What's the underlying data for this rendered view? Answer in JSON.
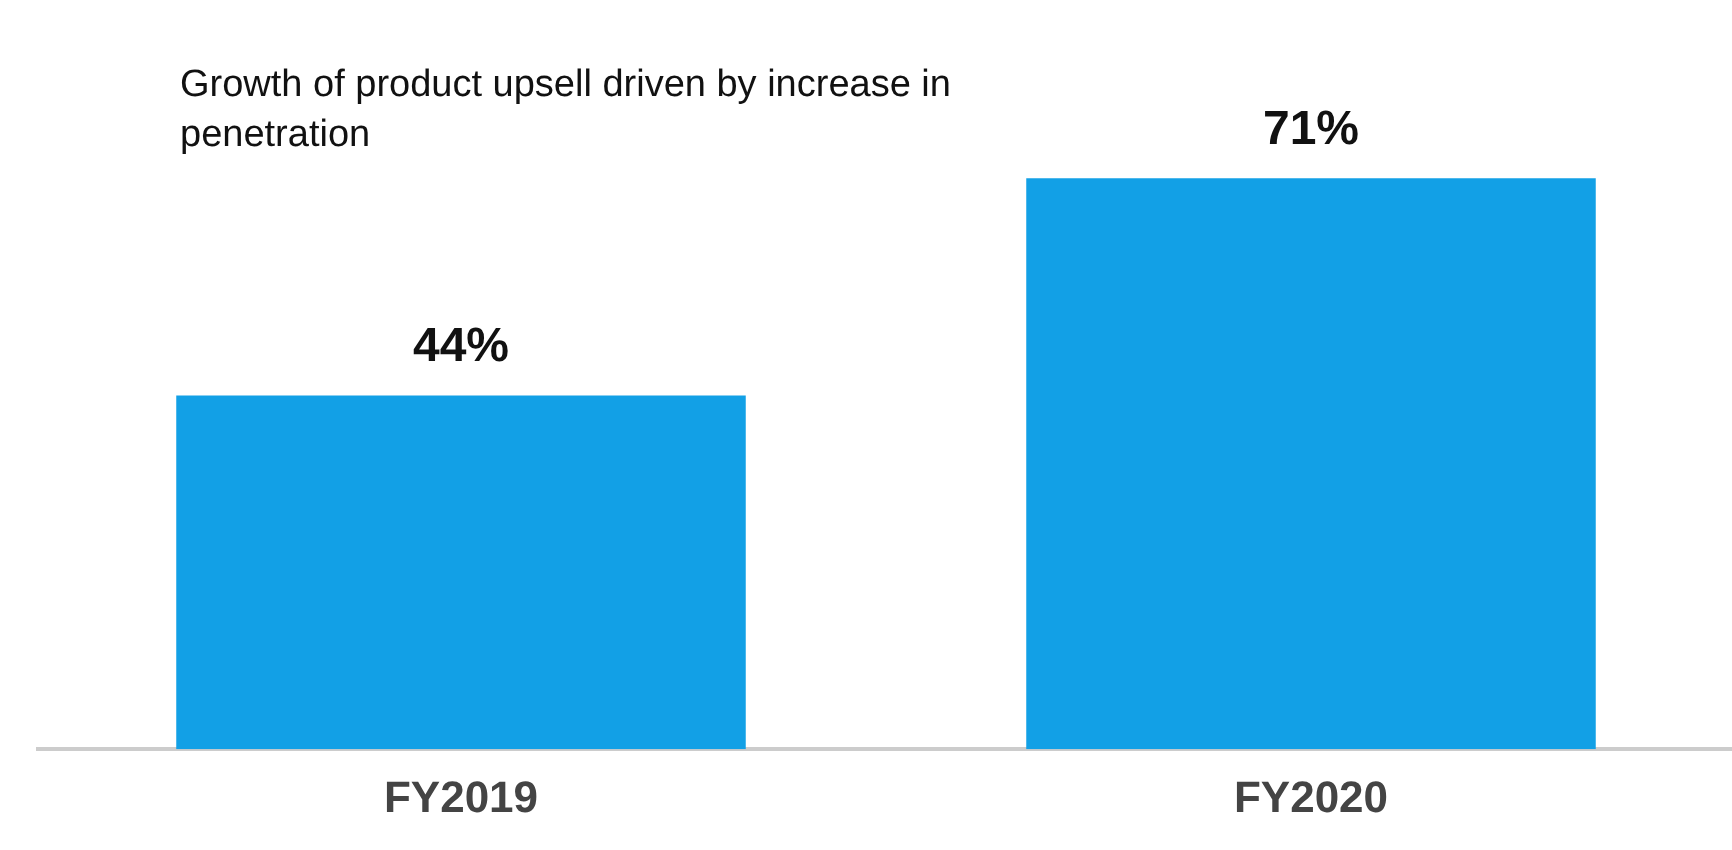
{
  "chart_data": {
    "type": "bar",
    "categories": [
      "FY2019",
      "FY2020"
    ],
    "values": [
      44,
      71
    ],
    "value_labels": [
      "44%",
      "71%"
    ],
    "color": "#12a0e6",
    "annotations": [
      "Growth of product upsell driven by increase in penetration"
    ],
    "grid": false,
    "legend": false,
    "tick_labels": "x"
  }
}
